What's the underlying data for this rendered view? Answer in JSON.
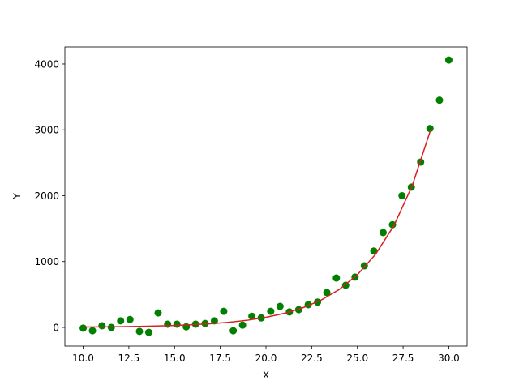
{
  "chart_data": {
    "type": "scatter",
    "xlabel": "X",
    "ylabel": "Y",
    "xlim": [
      9,
      31
    ],
    "ylim": [
      -283,
      4258
    ],
    "xticks": [
      {
        "value": 10,
        "label": "10.0"
      },
      12.5,
      {
        "value": 15,
        "label": "15.0"
      },
      17.5,
      {
        "value": 20,
        "label": "20.0"
      },
      22.5,
      {
        "value": 25,
        "label": "25.0"
      },
      27.5,
      {
        "value": 30,
        "label": "30.0"
      }
    ],
    "yticks": [
      0,
      1000,
      2000,
      3000,
      4000
    ],
    "series": [
      {
        "type": "scatter",
        "color": "green",
        "x": [
          10,
          10.51,
          11.03,
          11.54,
          12.05,
          12.56,
          13.08,
          13.59,
          14.1,
          14.62,
          15.13,
          15.64,
          16.15,
          16.67,
          17.18,
          17.69,
          18.21,
          18.72,
          19.23,
          19.74,
          20.26,
          20.77,
          21.28,
          21.79,
          22.31,
          22.82,
          23.33,
          23.85,
          24.36,
          24.87,
          25.38,
          25.9,
          26.41,
          26.92,
          27.44,
          27.95,
          28.46,
          28.97,
          29.49,
          30
        ],
        "values": [
          -10,
          -50,
          25,
          0,
          100,
          120,
          -60,
          -75,
          220,
          50,
          50,
          10,
          50,
          60,
          100,
          245,
          -50,
          35,
          170,
          145,
          245,
          320,
          235,
          270,
          345,
          385,
          530,
          750,
          640,
          765,
          935,
          1160,
          1440,
          1560,
          2000,
          2130,
          2510,
          3020,
          3450,
          4060
        ]
      },
      {
        "type": "line",
        "color": "#d62020",
        "x": [
          10,
          11,
          12,
          13,
          14,
          15,
          16,
          17,
          18,
          19,
          20,
          21,
          22,
          23,
          24,
          25,
          26,
          27,
          28,
          29
        ],
        "values": [
          5.7,
          7.9,
          11,
          15,
          21,
          30,
          41,
          57,
          79,
          110,
          154,
          214,
          297,
          413,
          575,
          800,
          1113,
          1548,
          2153,
          2995
        ]
      }
    ]
  }
}
